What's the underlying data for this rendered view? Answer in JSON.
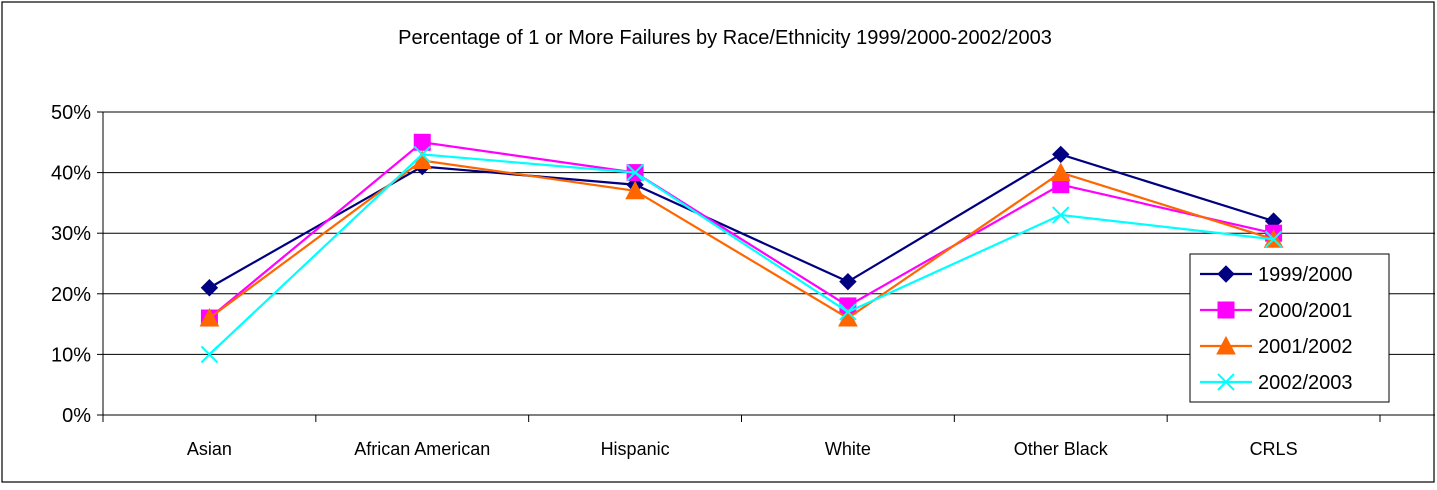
{
  "chart_data": {
    "type": "line",
    "title": "Percentage of 1 or More Failures by Race/Ethnicity 1999/2000-2002/2003",
    "xlabel": "",
    "ylabel": "",
    "categories": [
      "Asian",
      "African American",
      "Hispanic",
      "White",
      "Other Black",
      "CRLS"
    ],
    "ylim": [
      0,
      50
    ],
    "yticks": [
      0,
      10,
      20,
      30,
      40,
      50
    ],
    "ytick_labels": [
      "0%",
      "10%",
      "20%",
      "30%",
      "40%",
      "50%"
    ],
    "grid": true,
    "legend_position": "right",
    "series": [
      {
        "name": "1999/2000",
        "color": "#000080",
        "marker": "diamond",
        "values": [
          21,
          41,
          38,
          22,
          43,
          32
        ]
      },
      {
        "name": "2000/2001",
        "color": "#FF00FF",
        "marker": "square",
        "values": [
          16,
          45,
          40,
          18,
          38,
          30
        ]
      },
      {
        "name": "2001/2002",
        "color": "#FF6600",
        "marker": "triangle",
        "values": [
          16,
          42,
          37,
          16,
          40,
          29
        ]
      },
      {
        "name": "2002/2003",
        "color": "#00FFFF",
        "marker": "x",
        "values": [
          10,
          43,
          40,
          17,
          33,
          29
        ]
      }
    ]
  }
}
